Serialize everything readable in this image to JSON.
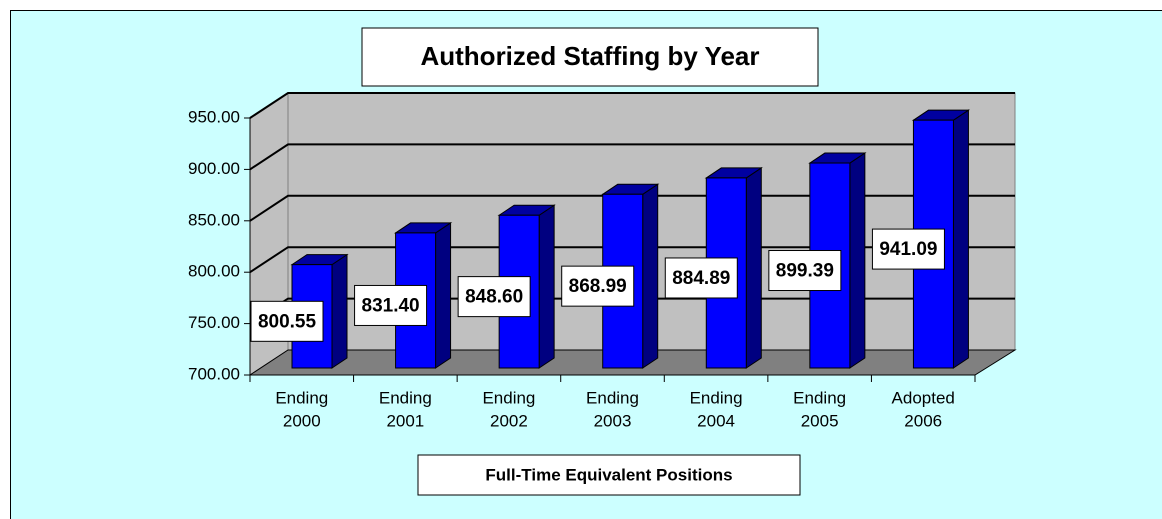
{
  "chart_data": {
    "type": "bar3d",
    "title": "Authorized Staffing by Year",
    "x_label": "Full-Time Equivalent Positions",
    "categories": [
      [
        "Ending",
        "2000"
      ],
      [
        "Ending",
        "2001"
      ],
      [
        "Ending",
        "2002"
      ],
      [
        "Ending",
        "2003"
      ],
      [
        "Ending",
        "2004"
      ],
      [
        "Ending",
        "2005"
      ],
      [
        "Adopted",
        "2006"
      ]
    ],
    "values": [
      800.55,
      831.4,
      848.6,
      868.99,
      884.89,
      899.39,
      941.09
    ],
    "value_labels": [
      "800.55",
      "831.40",
      "848.60",
      "868.99",
      "884.89",
      "899.39",
      "941.09"
    ],
    "color": "#0000ff",
    "ylim": [
      700,
      950
    ],
    "yticks": [
      {
        "value": 700,
        "label": "700.00"
      },
      {
        "value": 750,
        "label": "750.00"
      },
      {
        "value": 800,
        "label": "800.00"
      },
      {
        "value": 850,
        "label": "850.00"
      },
      {
        "value": 900,
        "label": "900.00"
      },
      {
        "value": 950,
        "label": "950.00"
      }
    ],
    "grid": true
  }
}
